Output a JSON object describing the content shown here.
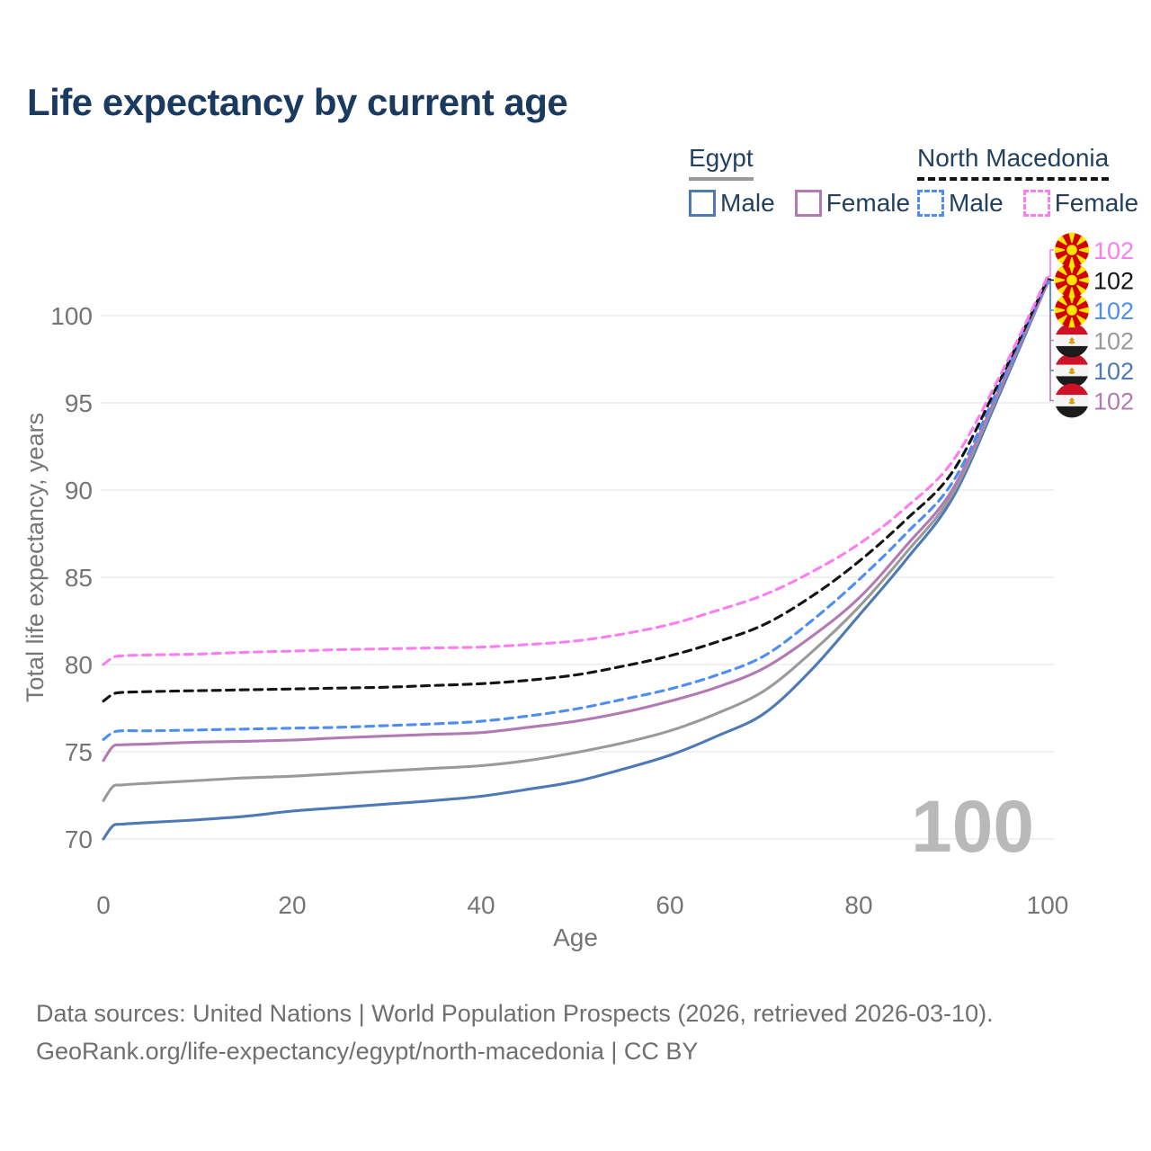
{
  "title": "Life expectancy by current age",
  "legend": {
    "groups": [
      {
        "country": "Egypt",
        "line_style": "solid",
        "line_color": "#9a9a9a",
        "items": [
          {
            "label": "Male",
            "color": "#4d79b5"
          },
          {
            "label": "Female",
            "color": "#b27ab2"
          }
        ]
      },
      {
        "country": "North Macedonia",
        "line_style": "dashed",
        "line_color": "#141414",
        "items": [
          {
            "label": "Male",
            "color": "#4e8ef2"
          },
          {
            "label": "Female",
            "color": "#fb7df0"
          }
        ]
      }
    ]
  },
  "footer": {
    "line1": "Data sources: United Nations | World Population Prospects (2026, retrieved 2026-03-10).",
    "line2": "GeoRank.org/life-expectancy/egypt/north-macedonia | CC BY"
  },
  "chart_data": {
    "type": "line",
    "title": "Life expectancy by current age",
    "xlabel": "Age",
    "ylabel": "Total life expectancy, years",
    "xlim": [
      0,
      100
    ],
    "ylim": [
      68.5,
      103.5
    ],
    "xticks": [
      0,
      20,
      40,
      60,
      80,
      100
    ],
    "yticks": [
      70,
      75,
      80,
      85,
      90,
      95,
      100
    ],
    "grid": true,
    "legend_position": "top-right",
    "watermark_age": "100",
    "series": [
      {
        "name": "Egypt Male",
        "country": "Egypt",
        "sex": "Male",
        "color": "#4d79b5",
        "dashed": false,
        "flag": "egypt",
        "end_label": "102",
        "label_row": 4,
        "points": [
          [
            0,
            70.0
          ],
          [
            1,
            70.75
          ],
          [
            2,
            70.85
          ],
          [
            5,
            70.95
          ],
          [
            10,
            71.1
          ],
          [
            15,
            71.3
          ],
          [
            20,
            71.6
          ],
          [
            25,
            71.8
          ],
          [
            30,
            72.0
          ],
          [
            35,
            72.2
          ],
          [
            40,
            72.45
          ],
          [
            45,
            72.85
          ],
          [
            50,
            73.3
          ],
          [
            55,
            74.0
          ],
          [
            60,
            74.8
          ],
          [
            65,
            75.9
          ],
          [
            70,
            77.2
          ],
          [
            75,
            79.7
          ],
          [
            80,
            82.8
          ],
          [
            85,
            86.0
          ],
          [
            90,
            89.6
          ],
          [
            95,
            95.6
          ],
          [
            100,
            101.9
          ]
        ]
      },
      {
        "name": "Egypt",
        "country": "Egypt",
        "sex": "Both",
        "color": "#9a9a9a",
        "dashed": false,
        "flag": "egypt",
        "end_label": "102",
        "label_row": 3,
        "points": [
          [
            0,
            72.2
          ],
          [
            1,
            73.0
          ],
          [
            2,
            73.1
          ],
          [
            5,
            73.2
          ],
          [
            10,
            73.35
          ],
          [
            15,
            73.5
          ],
          [
            20,
            73.6
          ],
          [
            25,
            73.75
          ],
          [
            30,
            73.9
          ],
          [
            35,
            74.05
          ],
          [
            40,
            74.2
          ],
          [
            45,
            74.5
          ],
          [
            50,
            74.95
          ],
          [
            55,
            75.5
          ],
          [
            60,
            76.2
          ],
          [
            65,
            77.2
          ],
          [
            70,
            78.5
          ],
          [
            75,
            80.7
          ],
          [
            80,
            83.3
          ],
          [
            85,
            86.4
          ],
          [
            90,
            89.85
          ],
          [
            95,
            95.8
          ],
          [
            100,
            101.95
          ]
        ]
      },
      {
        "name": "Egypt Female",
        "country": "Egypt",
        "sex": "Female",
        "color": "#b27ab2",
        "dashed": false,
        "flag": "egypt",
        "end_label": "102",
        "label_row": 5,
        "points": [
          [
            0,
            74.5
          ],
          [
            1,
            75.3
          ],
          [
            2,
            75.4
          ],
          [
            5,
            75.45
          ],
          [
            10,
            75.55
          ],
          [
            15,
            75.6
          ],
          [
            20,
            75.67
          ],
          [
            25,
            75.8
          ],
          [
            30,
            75.9
          ],
          [
            35,
            76.0
          ],
          [
            40,
            76.1
          ],
          [
            45,
            76.4
          ],
          [
            50,
            76.75
          ],
          [
            55,
            77.25
          ],
          [
            60,
            77.9
          ],
          [
            65,
            78.7
          ],
          [
            70,
            79.8
          ],
          [
            75,
            81.6
          ],
          [
            80,
            83.8
          ],
          [
            85,
            86.8
          ],
          [
            90,
            90.1
          ],
          [
            95,
            95.9
          ],
          [
            100,
            101.85
          ]
        ]
      },
      {
        "name": "North Macedonia Male",
        "country": "North Macedonia",
        "sex": "Male",
        "color": "#4e8ef2",
        "dashed": true,
        "flag": "north-macedonia",
        "end_label": "102",
        "label_row": 2,
        "points": [
          [
            0,
            75.7
          ],
          [
            1,
            76.1
          ],
          [
            2,
            76.2
          ],
          [
            5,
            76.2
          ],
          [
            10,
            76.25
          ],
          [
            15,
            76.3
          ],
          [
            20,
            76.35
          ],
          [
            25,
            76.4
          ],
          [
            30,
            76.5
          ],
          [
            35,
            76.6
          ],
          [
            40,
            76.75
          ],
          [
            45,
            77.05
          ],
          [
            50,
            77.45
          ],
          [
            55,
            78.0
          ],
          [
            60,
            78.6
          ],
          [
            65,
            79.4
          ],
          [
            70,
            80.5
          ],
          [
            75,
            82.5
          ],
          [
            80,
            84.85
          ],
          [
            85,
            87.5
          ],
          [
            90,
            90.5
          ],
          [
            95,
            96.1
          ],
          [
            100,
            102.0
          ]
        ]
      },
      {
        "name": "North Macedonia",
        "country": "North Macedonia",
        "sex": "Both",
        "color": "#141414",
        "dashed": true,
        "flag": "north-macedonia",
        "end_label": "102",
        "label_row": 1,
        "points": [
          [
            0,
            77.9
          ],
          [
            1,
            78.3
          ],
          [
            2,
            78.4
          ],
          [
            5,
            78.45
          ],
          [
            10,
            78.5
          ],
          [
            15,
            78.55
          ],
          [
            20,
            78.6
          ],
          [
            25,
            78.65
          ],
          [
            30,
            78.7
          ],
          [
            35,
            78.8
          ],
          [
            40,
            78.9
          ],
          [
            45,
            79.1
          ],
          [
            50,
            79.4
          ],
          [
            55,
            79.9
          ],
          [
            60,
            80.5
          ],
          [
            65,
            81.3
          ],
          [
            70,
            82.3
          ],
          [
            75,
            83.9
          ],
          [
            80,
            85.9
          ],
          [
            85,
            88.3
          ],
          [
            90,
            91.1
          ],
          [
            95,
            96.35
          ],
          [
            100,
            102.1
          ]
        ]
      },
      {
        "name": "North Macedonia Female",
        "country": "North Macedonia",
        "sex": "Female",
        "color": "#fb7df0",
        "dashed": true,
        "flag": "north-macedonia",
        "end_label": "102",
        "label_row": 0,
        "points": [
          [
            0,
            80.0
          ],
          [
            1,
            80.4
          ],
          [
            2,
            80.5
          ],
          [
            5,
            80.55
          ],
          [
            10,
            80.6
          ],
          [
            15,
            80.7
          ],
          [
            20,
            80.77
          ],
          [
            25,
            80.85
          ],
          [
            30,
            80.9
          ],
          [
            35,
            80.95
          ],
          [
            40,
            81.0
          ],
          [
            45,
            81.15
          ],
          [
            50,
            81.35
          ],
          [
            55,
            81.75
          ],
          [
            60,
            82.3
          ],
          [
            65,
            83.1
          ],
          [
            70,
            84.0
          ],
          [
            75,
            85.3
          ],
          [
            80,
            86.9
          ],
          [
            85,
            89.0
          ],
          [
            90,
            91.7
          ],
          [
            95,
            96.6
          ],
          [
            100,
            102.25
          ]
        ]
      }
    ]
  }
}
